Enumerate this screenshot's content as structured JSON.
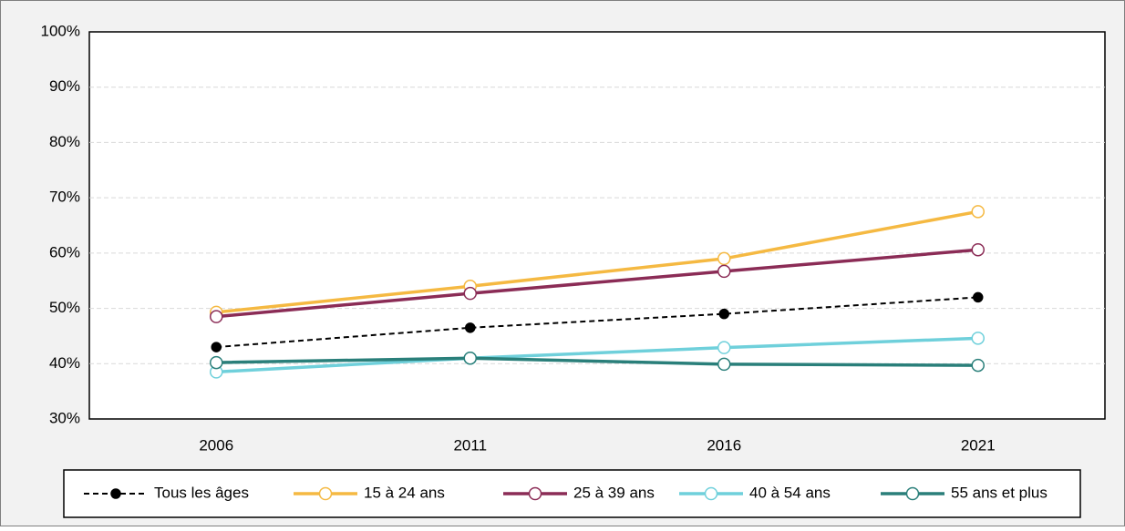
{
  "chart_data": {
    "type": "line",
    "categories": [
      "2006",
      "2011",
      "2016",
      "2021"
    ],
    "series": [
      {
        "name": "Tous les âges",
        "color": "#000000",
        "dashed": true,
        "marker_fill": "#000000",
        "values": [
          43,
          46.5,
          49,
          52
        ]
      },
      {
        "name": "15 à 24 ans",
        "color": "#f5b942",
        "marker_fill": "#ffffff",
        "values": [
          49.3,
          54,
          59,
          67.5
        ]
      },
      {
        "name": "25 à 39 ans",
        "color": "#8b2c56",
        "marker_fill": "#ffffff",
        "values": [
          48.5,
          52.7,
          56.7,
          60.6
        ]
      },
      {
        "name": "40 à 54 ans",
        "color": "#6fd0db",
        "marker_fill": "#ffffff",
        "values": [
          38.5,
          41,
          42.9,
          44.6
        ]
      },
      {
        "name": "55 ans et plus",
        "color": "#2a7f7a",
        "marker_fill": "#ffffff",
        "values": [
          40.2,
          41,
          39.9,
          39.7
        ]
      }
    ],
    "ylim": [
      30,
      100
    ],
    "yticks": [
      {
        "value": 30,
        "label": "30%"
      },
      {
        "value": 40,
        "label": "40%"
      },
      {
        "value": 50,
        "label": "50%"
      },
      {
        "value": 60,
        "label": "60%"
      },
      {
        "value": 70,
        "label": "70%"
      },
      {
        "value": 80,
        "label": "80%"
      },
      {
        "value": 90,
        "label": "90%"
      },
      {
        "value": 100,
        "label": "100%"
      }
    ],
    "grid": true,
    "legend": "bottom"
  }
}
